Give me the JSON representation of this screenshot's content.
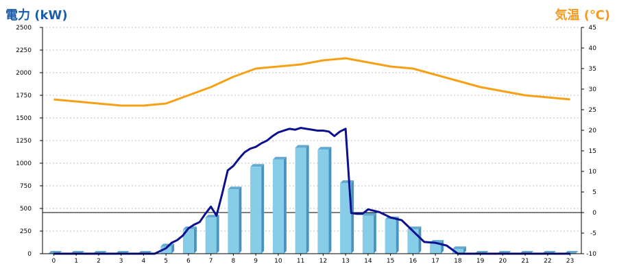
{
  "chart_data": {
    "type": "bar",
    "left_axis_title": "電力 (kW)",
    "right_axis_title": "気温 (℃)",
    "categories": [
      "0",
      "1",
      "2",
      "3",
      "4",
      "5",
      "6",
      "7",
      "8",
      "9",
      "10",
      "11",
      "12",
      "13",
      "14",
      "15",
      "16",
      "17",
      "18",
      "19",
      "20",
      "21",
      "22",
      "23"
    ],
    "ylim": [
      0,
      2500
    ],
    "y_ticks": [
      0,
      250,
      500,
      750,
      1000,
      1250,
      1500,
      1750,
      2000,
      2250,
      2500
    ],
    "y2lim": [
      -10,
      45
    ],
    "y2_ticks": [
      -10,
      -5,
      0,
      5,
      10,
      15,
      20,
      25,
      30,
      35,
      40,
      45
    ],
    "series": [
      {
        "kind": "bar",
        "axis": "left",
        "values": [
          0,
          0,
          0,
          0,
          0,
          80,
          270,
          400,
          710,
          960,
          1040,
          1170,
          1150,
          780,
          420,
          380,
          270,
          120,
          50,
          0,
          0,
          0,
          0,
          0
        ]
      },
      {
        "kind": "line",
        "axis": "left",
        "x": [
          0,
          1,
          2,
          3,
          4,
          4.5,
          5,
          5.25,
          5.5,
          5.75,
          6,
          6.25,
          6.5,
          6.75,
          7,
          7.25,
          7.5,
          7.75,
          8,
          8.25,
          8.5,
          8.75,
          9,
          9.25,
          9.5,
          9.75,
          10,
          10.25,
          10.5,
          10.75,
          11,
          11.25,
          11.5,
          11.75,
          12,
          12.25,
          12.5,
          12.75,
          13,
          13.25,
          13.5,
          13.75,
          14,
          14.5,
          15,
          15.5,
          16,
          16.5,
          17,
          17.5,
          18,
          19,
          20,
          21,
          22,
          23
        ],
        "values": [
          0,
          0,
          0,
          0,
          0,
          0,
          60,
          120,
          150,
          200,
          280,
          320,
          350,
          440,
          520,
          420,
          660,
          920,
          970,
          1050,
          1120,
          1160,
          1180,
          1220,
          1250,
          1300,
          1340,
          1360,
          1380,
          1370,
          1390,
          1380,
          1370,
          1360,
          1360,
          1350,
          1300,
          1350,
          1380,
          450,
          440,
          440,
          490,
          460,
          400,
          370,
          250,
          130,
          120,
          90,
          0,
          0,
          0,
          0,
          0,
          0
        ]
      },
      {
        "kind": "line",
        "axis": "right",
        "x": [
          0,
          1,
          2,
          3,
          4,
          5,
          6,
          7,
          8,
          9,
          10,
          11,
          12,
          13,
          14,
          15,
          16,
          17,
          18,
          19,
          20,
          21,
          22,
          23
        ],
        "values": [
          27.5,
          27,
          26.5,
          26,
          26,
          26.5,
          28.5,
          30.5,
          33,
          35,
          35.5,
          36,
          37,
          37.5,
          36.5,
          35.5,
          35,
          33.5,
          32,
          30.5,
          29.5,
          28.5,
          28,
          27.5
        ]
      }
    ],
    "colors": {
      "bar_front": "#87cde8",
      "bar_side": "#4a93bd",
      "bar_top": "#64a9d0",
      "power_line": "#0b108f",
      "temp_line": "#f6a114",
      "grid": "#bdbdbd",
      "left_title": "#1a5ea8",
      "right_title": "#f39a20"
    },
    "grid": true
  }
}
